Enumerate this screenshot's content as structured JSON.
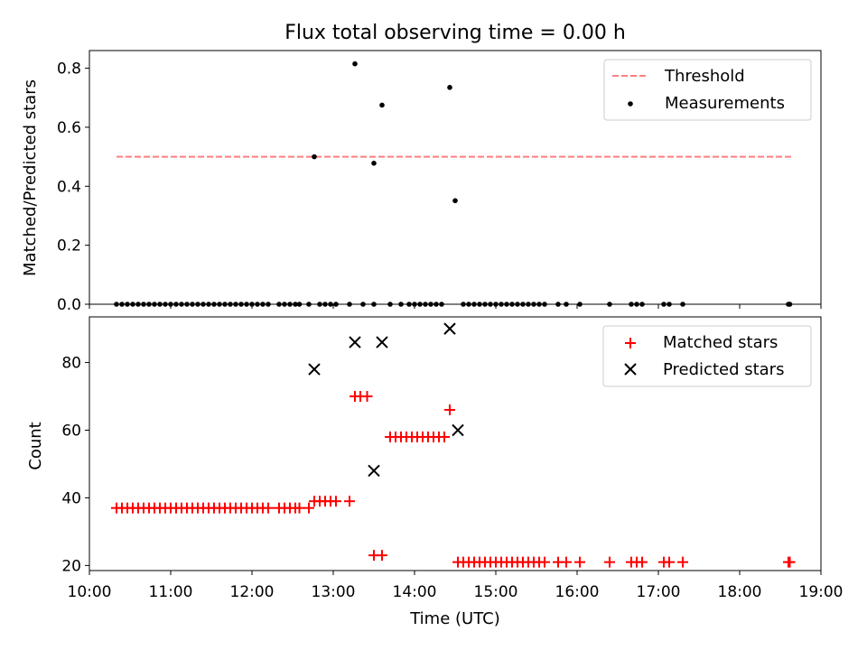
{
  "chart_data": [
    {
      "type": "scatter",
      "title": "Flux total observing time = 0.00 h",
      "ylabel": "Matched/Predicted stars",
      "xlim": [
        "10:00",
        "19:00"
      ],
      "ylim": [
        0.0,
        0.86
      ],
      "yticks": [
        "0.0",
        "0.2",
        "0.4",
        "0.6",
        "0.8"
      ],
      "ytick_values": [
        0.0,
        0.2,
        0.4,
        0.6,
        0.8
      ],
      "legend_position": "top-right",
      "threshold": {
        "name": "Threshold",
        "value": 0.5,
        "x_range": [
          "10:20",
          "18:40"
        ],
        "color": "#ff7f7f",
        "style": "dashed"
      },
      "series": [
        {
          "name": "Measurements",
          "color": "#000000",
          "marker": "dot",
          "points": [
            [
              "12:46",
              0.5
            ],
            [
              "13:16",
              0.815
            ],
            [
              "13:36",
              0.675
            ],
            [
              "13:30",
              0.478
            ],
            [
              "14:26",
              0.735
            ],
            [
              "14:30",
              0.351
            ]
          ],
          "zero_times": [
            "10:20",
            "10:24",
            "10:28",
            "10:32",
            "10:36",
            "10:40",
            "10:44",
            "10:48",
            "10:52",
            "10:56",
            "11:00",
            "11:04",
            "11:08",
            "11:12",
            "11:16",
            "11:20",
            "11:24",
            "11:28",
            "11:32",
            "11:36",
            "11:40",
            "11:44",
            "11:48",
            "11:52",
            "11:56",
            "12:00",
            "12:04",
            "12:08",
            "12:12",
            "12:20",
            "12:24",
            "12:28",
            "12:32",
            "12:35",
            "12:42",
            "12:50",
            "12:54",
            "12:58",
            "13:02",
            "13:12",
            "13:22",
            "13:30",
            "13:42",
            "13:50",
            "13:56",
            "14:00",
            "14:04",
            "14:08",
            "14:12",
            "14:16",
            "14:20",
            "14:36",
            "14:40",
            "14:44",
            "14:48",
            "14:52",
            "14:56",
            "15:00",
            "15:04",
            "15:08",
            "15:12",
            "15:16",
            "15:20",
            "15:24",
            "15:28",
            "15:32",
            "15:36",
            "15:46",
            "15:52",
            "16:02",
            "16:24",
            "16:40",
            "16:44",
            "16:48",
            "17:04",
            "17:08",
            "17:18",
            "18:36",
            "18:37"
          ]
        }
      ]
    },
    {
      "type": "scatter",
      "xlabel": "Time (UTC)",
      "ylabel": "Count",
      "xlim": [
        "10:00",
        "19:00"
      ],
      "ylim": [
        18.5,
        93.5
      ],
      "xticks": [
        "10:00",
        "11:00",
        "12:00",
        "13:00",
        "14:00",
        "15:00",
        "16:00",
        "17:00",
        "18:00",
        "19:00"
      ],
      "yticks": [
        "20",
        "40",
        "60",
        "80"
      ],
      "ytick_values": [
        20,
        40,
        60,
        80
      ],
      "legend_position": "top-right",
      "series": [
        {
          "name": "Matched stars",
          "color": "#ff0000",
          "marker": "plus",
          "points": [
            [
              "10:20",
              37
            ],
            [
              "10:24",
              37
            ],
            [
              "10:28",
              37
            ],
            [
              "10:32",
              37
            ],
            [
              "10:36",
              37
            ],
            [
              "10:40",
              37
            ],
            [
              "10:44",
              37
            ],
            [
              "10:48",
              37
            ],
            [
              "10:52",
              37
            ],
            [
              "10:56",
              37
            ],
            [
              "11:00",
              37
            ],
            [
              "11:04",
              37
            ],
            [
              "11:08",
              37
            ],
            [
              "11:12",
              37
            ],
            [
              "11:16",
              37
            ],
            [
              "11:20",
              37
            ],
            [
              "11:24",
              37
            ],
            [
              "11:28",
              37
            ],
            [
              "11:32",
              37
            ],
            [
              "11:36",
              37
            ],
            [
              "11:40",
              37
            ],
            [
              "11:44",
              37
            ],
            [
              "11:48",
              37
            ],
            [
              "11:52",
              37
            ],
            [
              "11:56",
              37
            ],
            [
              "12:00",
              37
            ],
            [
              "12:04",
              37
            ],
            [
              "12:08",
              37
            ],
            [
              "12:12",
              37
            ],
            [
              "12:20",
              37
            ],
            [
              "12:24",
              37
            ],
            [
              "12:28",
              37
            ],
            [
              "12:32",
              37
            ],
            [
              "12:35",
              37
            ],
            [
              "12:42",
              37
            ],
            [
              "12:46",
              39
            ],
            [
              "12:50",
              39
            ],
            [
              "12:54",
              39
            ],
            [
              "12:58",
              39
            ],
            [
              "13:02",
              39
            ],
            [
              "13:12",
              39
            ],
            [
              "13:16",
              70
            ],
            [
              "13:20",
              70
            ],
            [
              "13:25",
              70
            ],
            [
              "13:30",
              23
            ],
            [
              "13:36",
              23
            ],
            [
              "13:42",
              58
            ],
            [
              "13:46",
              58
            ],
            [
              "13:50",
              58
            ],
            [
              "13:54",
              58
            ],
            [
              "13:58",
              58
            ],
            [
              "14:02",
              58
            ],
            [
              "14:06",
              58
            ],
            [
              "14:10",
              58
            ],
            [
              "14:14",
              58
            ],
            [
              "14:18",
              58
            ],
            [
              "14:22",
              58
            ],
            [
              "14:26",
              66
            ],
            [
              "14:32",
              21
            ],
            [
              "14:36",
              21
            ],
            [
              "14:40",
              21
            ],
            [
              "14:44",
              21
            ],
            [
              "14:48",
              21
            ],
            [
              "14:52",
              21
            ],
            [
              "14:56",
              21
            ],
            [
              "15:00",
              21
            ],
            [
              "15:04",
              21
            ],
            [
              "15:08",
              21
            ],
            [
              "15:12",
              21
            ],
            [
              "15:16",
              21
            ],
            [
              "15:20",
              21
            ],
            [
              "15:24",
              21
            ],
            [
              "15:28",
              21
            ],
            [
              "15:32",
              21
            ],
            [
              "15:36",
              21
            ],
            [
              "15:46",
              21
            ],
            [
              "15:52",
              21
            ],
            [
              "16:02",
              21
            ],
            [
              "16:24",
              21
            ],
            [
              "16:40",
              21
            ],
            [
              "16:44",
              21
            ],
            [
              "16:48",
              21
            ],
            [
              "17:04",
              21
            ],
            [
              "17:08",
              21
            ],
            [
              "17:18",
              21
            ],
            [
              "18:36",
              21
            ],
            [
              "18:37",
              21
            ]
          ]
        },
        {
          "name": "Predicted stars",
          "color": "#000000",
          "marker": "x",
          "points": [
            [
              "12:46",
              78
            ],
            [
              "13:16",
              86
            ],
            [
              "13:36",
              86
            ],
            [
              "13:30",
              48
            ],
            [
              "14:26",
              90
            ],
            [
              "14:32",
              60
            ]
          ]
        }
      ]
    }
  ]
}
